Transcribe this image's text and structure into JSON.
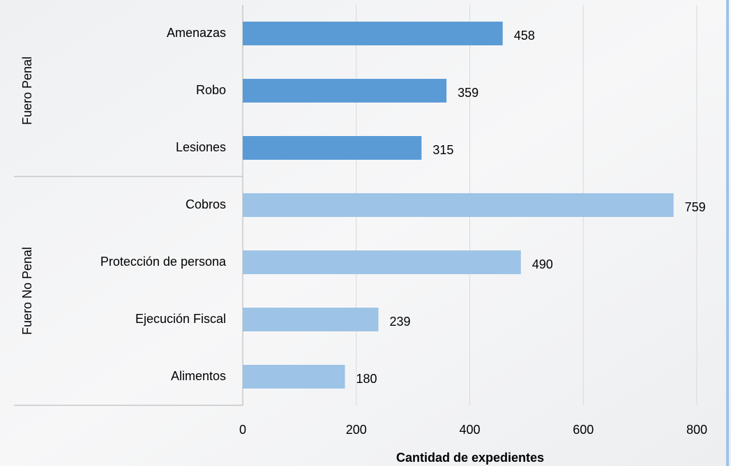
{
  "chart_data": {
    "type": "bar",
    "orientation": "horizontal",
    "series": [
      {
        "name": "Fuero Penal",
        "color": "#5b9bd5",
        "categories": [
          "Amenazas",
          "Robo",
          "Lesiones"
        ],
        "values": [
          458,
          359,
          315
        ]
      },
      {
        "name": "Fuero No Penal",
        "color": "#9dc3e6",
        "categories": [
          "Cobros",
          "Protección de persona",
          "Ejecución Fiscal",
          "Alimentos"
        ],
        "values": [
          759,
          490,
          239,
          180
        ]
      }
    ],
    "xlabel": "Cantidad de expedientes",
    "xlim": [
      0,
      800
    ],
    "xticks": [
      0,
      200,
      400,
      600,
      800
    ],
    "grid": true
  }
}
